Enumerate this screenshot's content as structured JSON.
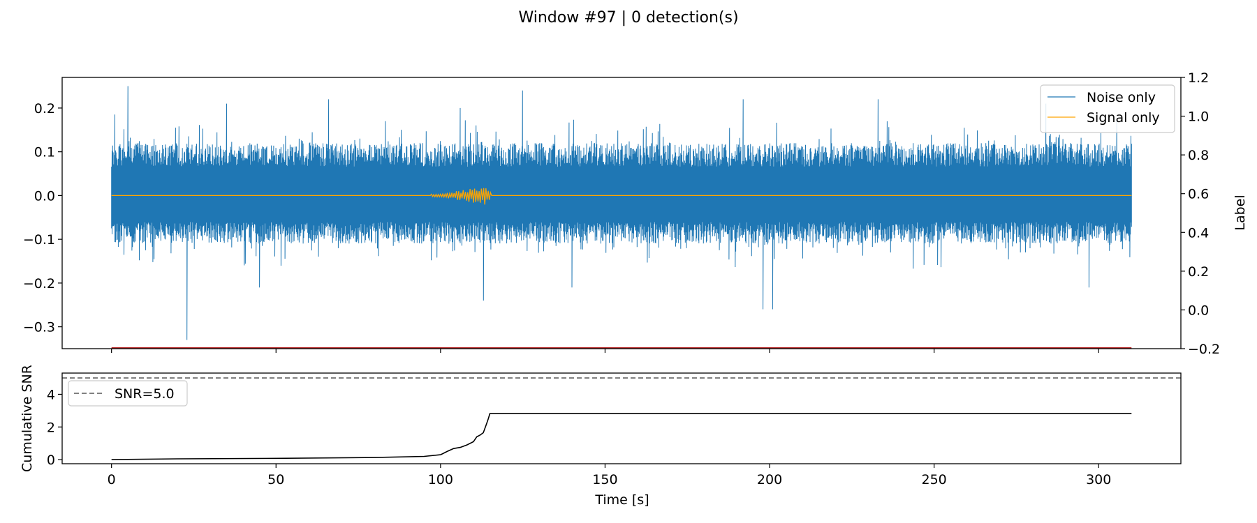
{
  "figure": {
    "title": "Window #97 | 0 detection(s)"
  },
  "chart_data": [
    {
      "type": "line",
      "panel": "top",
      "x_range": [
        0,
        310
      ],
      "xlim": [
        -15,
        325
      ],
      "ylim": [
        -0.35,
        0.27
      ],
      "yticks": [
        "0.2",
        "0.1",
        "0.0",
        "−0.1",
        "−0.2",
        "−0.3"
      ],
      "ytick_values": [
        0.2,
        0.1,
        0.0,
        -0.1,
        -0.2,
        -0.3
      ],
      "right_axis": {
        "ylabel": "Label",
        "ylim": [
          -0.2,
          1.2
        ],
        "yticks": [
          "1.2",
          "1.0",
          "0.8",
          "0.6",
          "0.4",
          "0.2",
          "0.0",
          "−0.2"
        ],
        "ytick_values": [
          1.2,
          1.0,
          0.8,
          0.6,
          0.4,
          0.2,
          0.0,
          -0.2
        ]
      },
      "legend_position": "upper right",
      "series": [
        {
          "name": "Noise only",
          "color": "#1f77b4",
          "note": "dense broadband noise trace",
          "envelope": {
            "typical_max": 0.12,
            "typical_min": -0.11,
            "peak_max": 0.25,
            "peak_min": -0.33
          },
          "spikes": [
            {
              "x": 1,
              "y": 0.185
            },
            {
              "x": 5,
              "y": 0.25
            },
            {
              "x": 23,
              "y": -0.33
            },
            {
              "x": 35,
              "y": 0.21
            },
            {
              "x": 45,
              "y": -0.21
            },
            {
              "x": 66,
              "y": 0.22
            },
            {
              "x": 106,
              "y": 0.2
            },
            {
              "x": 113,
              "y": -0.24
            },
            {
              "x": 125,
              "y": 0.24
            },
            {
              "x": 140,
              "y": -0.21
            },
            {
              "x": 192,
              "y": 0.22
            },
            {
              "x": 198,
              "y": -0.26
            },
            {
              "x": 201,
              "y": -0.26
            },
            {
              "x": 233,
              "y": 0.22
            },
            {
              "x": 284,
              "y": 0.21
            },
            {
              "x": 297,
              "y": -0.21
            }
          ]
        },
        {
          "name": "Signal only",
          "color": "#ffa500",
          "note": "flat at 0 with a small burst between ~97 s and ~115 s",
          "burst": {
            "start": 97,
            "end": 115.5,
            "peak_x": 114,
            "peak_amplitude": 0.022
          }
        },
        {
          "name": "",
          "axis": "right",
          "color": "#b22222",
          "note": "label line at 0 on the left part, rising out of view near the end",
          "points": [
            [
              0,
              -0.2
            ],
            [
              310,
              -0.2
            ]
          ]
        }
      ]
    },
    {
      "type": "line",
      "panel": "bottom",
      "xlabel": "Time [s]",
      "ylabel": "Cumulative SNR",
      "xlim": [
        -15,
        325
      ],
      "ylim": [
        -0.25,
        5.3
      ],
      "xticks": [
        "0",
        "50",
        "100",
        "150",
        "200",
        "250",
        "300"
      ],
      "xtick_values": [
        0,
        50,
        100,
        150,
        200,
        250,
        300
      ],
      "yticks": [
        "4",
        "2",
        "0"
      ],
      "ytick_values": [
        4,
        2,
        0
      ],
      "legend_position": "upper left",
      "hlines": [
        {
          "name": "SNR=5.0",
          "y": 5.0,
          "color": "#808080",
          "style": "dashed"
        }
      ],
      "series": [
        {
          "name": "",
          "color": "#000000",
          "points": [
            [
              0,
              0.0
            ],
            [
              20,
              0.05
            ],
            [
              50,
              0.08
            ],
            [
              80,
              0.13
            ],
            [
              95,
              0.2
            ],
            [
              100,
              0.3
            ],
            [
              102,
              0.5
            ],
            [
              104,
              0.68
            ],
            [
              106,
              0.75
            ],
            [
              108,
              0.9
            ],
            [
              110,
              1.1
            ],
            [
              111,
              1.4
            ],
            [
              112,
              1.5
            ],
            [
              113,
              1.65
            ],
            [
              114,
              2.2
            ],
            [
              114.5,
              2.5
            ],
            [
              115,
              2.82
            ],
            [
              120,
              2.83
            ],
            [
              200,
              2.83
            ],
            [
              310,
              2.83
            ]
          ]
        }
      ]
    }
  ]
}
